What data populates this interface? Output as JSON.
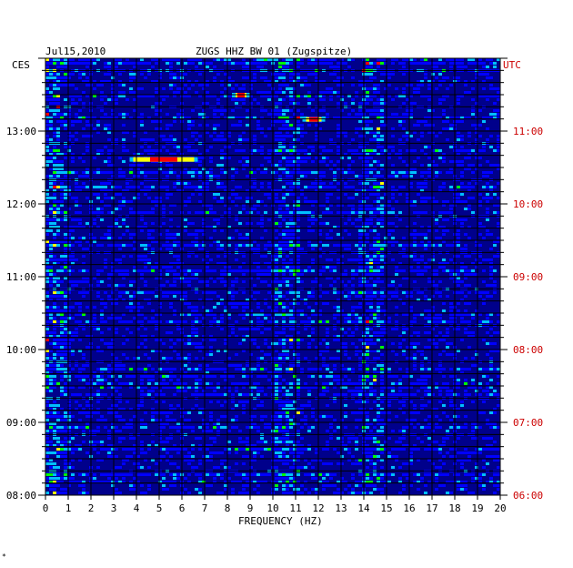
{
  "header": {
    "date": "Jul15,2010",
    "station": "ZUGS HHZ BW 01 (Zugspitze)"
  },
  "corner_marks": {
    "bottom_left": "*"
  },
  "chart_data": {
    "type": "heatmap",
    "title": "ZUGS HHZ BW 01 (Zugspitze)",
    "date": "Jul15,2010",
    "xlabel": "FREQUENCY (HZ)",
    "xlim": [
      0,
      20
    ],
    "x_ticks": [
      "0",
      "1",
      "2",
      "3",
      "4",
      "5",
      "6",
      "7",
      "8",
      "9",
      "10",
      "11",
      "12",
      "13",
      "14",
      "15",
      "16",
      "17",
      "18",
      "19",
      "20"
    ],
    "left_axis": {
      "label": "CES",
      "ticks": [
        "08:00",
        "09:00",
        "10:00",
        "11:00",
        "12:00",
        "13:00"
      ],
      "color": "#000000"
    },
    "right_axis": {
      "label": "UTC",
      "ticks": [
        "06:00",
        "07:00",
        "08:00",
        "09:00",
        "10:00",
        "11:00"
      ],
      "color": "#cc0000"
    },
    "time_range_hours": [
      8.0,
      14.0
    ],
    "grid": true,
    "colormap": [
      "#00008b",
      "#0000ff",
      "#00bfff",
      "#00ff00",
      "#ffff00",
      "#ff0000"
    ],
    "bright_bands_hz": [
      [
        0.0,
        1.0
      ],
      [
        10.0,
        11.2
      ],
      [
        13.7,
        14.8
      ]
    ],
    "strong_events": [
      {
        "freq_range_hz": [
          3.7,
          6.7
        ],
        "time": "12:37 CES"
      },
      {
        "freq_range_hz": [
          8.2,
          9.0
        ],
        "time": "13:30 CES"
      },
      {
        "freq_range_hz": [
          11.3,
          12.3
        ],
        "time": "13:10 CES"
      }
    ]
  }
}
